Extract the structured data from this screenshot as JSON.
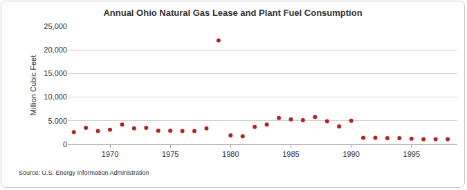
{
  "chart_data": {
    "type": "scatter",
    "title": "Annual Ohio Natural Gas Lease and Plant Fuel Consumption",
    "y_label": "Million Cubic Feet",
    "annotations": [
      "Source: U.S. Energy Information Administration"
    ],
    "x": [
      1967,
      1968,
      1969,
      1970,
      1971,
      1972,
      1973,
      1974,
      1975,
      1976,
      1977,
      1978,
      1979,
      1980,
      1981,
      1982,
      1983,
      1984,
      1985,
      1986,
      1987,
      1988,
      1989,
      1990,
      1991,
      1992,
      1993,
      1994,
      1995,
      1996,
      1997,
      1998
    ],
    "values": [
      2600,
      3500,
      2800,
      3100,
      4200,
      3400,
      3500,
      2900,
      2900,
      2800,
      2800,
      3400,
      22000,
      1900,
      1700,
      3700,
      4200,
      5600,
      5300,
      5100,
      5800,
      4900,
      3800,
      5000,
      1400,
      1400,
      1300,
      1300,
      1200,
      1100,
      1100,
      1100
    ],
    "color": "#b22222",
    "marker": "circle",
    "xlim": [
      1966.5,
      1998.8
    ],
    "xticks": [
      1970,
      1975,
      1980,
      1985,
      1990,
      1995
    ],
    "ylim": [
      0,
      25000
    ],
    "yticks": [
      0,
      {
        "value": 5000,
        "label": "5,000"
      },
      {
        "value": 10000,
        "label": "10,000"
      },
      {
        "value": 15000,
        "label": "15,000"
      },
      {
        "value": 20000,
        "label": "20,000"
      },
      {
        "value": 25000,
        "label": "25,000"
      }
    ],
    "grid": true
  }
}
